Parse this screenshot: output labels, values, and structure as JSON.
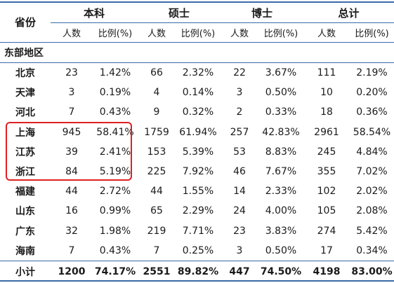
{
  "header": {
    "province": "省份",
    "groups": [
      "本科",
      "硕士",
      "博士",
      "总计"
    ],
    "count_label": "人数",
    "ratio_label": "比例(%)"
  },
  "region_label": "东部地区",
  "rows": [
    {
      "name": "北京",
      "values": [
        "23",
        "1.42%",
        "66",
        "2.32%",
        "22",
        "3.67%",
        "111",
        "2.19%"
      ]
    },
    {
      "name": "天津",
      "values": [
        "3",
        "0.19%",
        "4",
        "0.14%",
        "3",
        "0.50%",
        "10",
        "0.20%"
      ]
    },
    {
      "name": "河北",
      "values": [
        "7",
        "0.43%",
        "9",
        "0.32%",
        "2",
        "0.33%",
        "18",
        "0.36%"
      ]
    },
    {
      "name": "上海",
      "values": [
        "945",
        "58.41%",
        "1759",
        "61.94%",
        "257",
        "42.83%",
        "2961",
        "58.54%"
      ]
    },
    {
      "name": "江苏",
      "values": [
        "39",
        "2.41%",
        "153",
        "5.39%",
        "53",
        "8.83%",
        "245",
        "4.84%"
      ]
    },
    {
      "name": "浙江",
      "values": [
        "84",
        "5.19%",
        "225",
        "7.92%",
        "46",
        "7.67%",
        "355",
        "7.02%"
      ]
    },
    {
      "name": "福建",
      "values": [
        "44",
        "2.72%",
        "44",
        "1.55%",
        "14",
        "2.33%",
        "102",
        "2.02%"
      ]
    },
    {
      "name": "山东",
      "values": [
        "16",
        "0.99%",
        "65",
        "2.29%",
        "24",
        "4.00%",
        "105",
        "2.08%"
      ]
    },
    {
      "name": "广东",
      "values": [
        "32",
        "1.98%",
        "219",
        "7.71%",
        "23",
        "3.83%",
        "274",
        "5.42%"
      ]
    },
    {
      "name": "海南",
      "values": [
        "7",
        "0.43%",
        "7",
        "0.25%",
        "3",
        "0.50%",
        "17",
        "0.34%"
      ]
    }
  ],
  "total": {
    "name": "小计",
    "values": [
      "1200",
      "74.17%",
      "2551",
      "89.82%",
      "447",
      "74.50%",
      "4198",
      "83.00%"
    ]
  },
  "colors": {
    "rule": "#3a6aa8",
    "highlight": "#e02020"
  }
}
